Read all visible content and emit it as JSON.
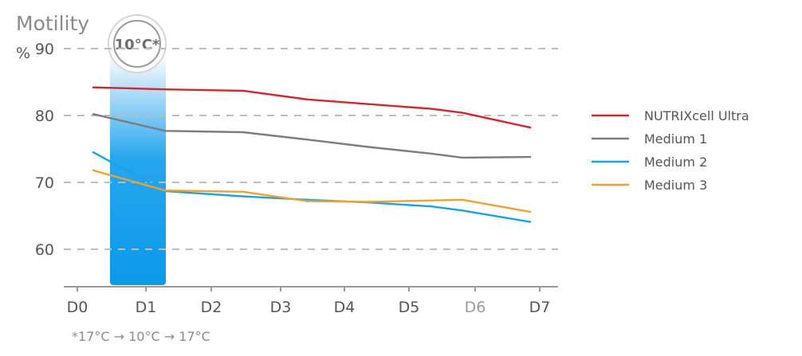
{
  "chart_data": {
    "type": "line",
    "ylabel": "Motility",
    "y_unit": "%",
    "ylim": [
      55,
      90
    ],
    "yticks": [
      60,
      70,
      80,
      90
    ],
    "categories": [
      "D0",
      "D1",
      "D2",
      "D3",
      "D4",
      "D5",
      "D6",
      "D7"
    ],
    "highlight_band": {
      "from": "D0",
      "to": "D1",
      "label": "10°C*"
    },
    "footnote": "*17°C → 10°C → 17°C",
    "grid": true,
    "legend_position": "right",
    "series": [
      {
        "name": "NUTRIXcell Ultra",
        "color": "#d4262f",
        "values": [
          84.2,
          83.9,
          83.7,
          82.4,
          81.7,
          81.0,
          80.4,
          78.2
        ]
      },
      {
        "name": "Medium 1",
        "color": "#7d7d7d",
        "values": [
          80.2,
          77.7,
          77.5,
          76.4,
          75.3,
          74.3,
          73.7,
          73.8
        ]
      },
      {
        "name": "Medium 2",
        "color": "#1aa3e0",
        "values": [
          74.5,
          68.7,
          67.9,
          67.4,
          67.0,
          66.4,
          65.8,
          64.1
        ]
      },
      {
        "name": "Medium 3",
        "color": "#f0a030",
        "values": [
          71.8,
          68.8,
          68.6,
          67.2,
          67.1,
          67.3,
          67.4,
          65.6
        ]
      }
    ]
  }
}
